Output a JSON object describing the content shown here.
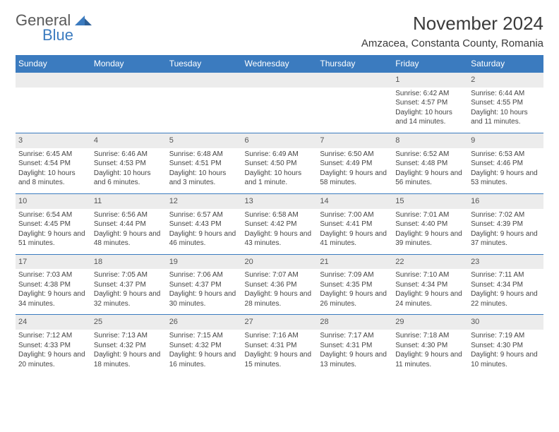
{
  "logo": {
    "general": "General",
    "blue": "Blue"
  },
  "title": "November 2024",
  "location": "Amzacea, Constanta County, Romania",
  "colors": {
    "header_bg": "#3b7bbf",
    "header_fg": "#ffffff",
    "daynum_bg": "#ececec",
    "rule": "#3b7bbf",
    "text": "#444444",
    "title": "#3a3a3a",
    "logo_gray": "#5a5a5a",
    "logo_blue": "#3b7bbf"
  },
  "typography": {
    "title_fontsize": 26,
    "location_fontsize": 15,
    "dayhead_fontsize": 12,
    "daynum_fontsize": 11,
    "detail_fontsize": 10
  },
  "day_headers": [
    "Sunday",
    "Monday",
    "Tuesday",
    "Wednesday",
    "Thursday",
    "Friday",
    "Saturday"
  ],
  "weeks": [
    [
      null,
      null,
      null,
      null,
      null,
      {
        "n": "1",
        "sr": "Sunrise: 6:42 AM",
        "ss": "Sunset: 4:57 PM",
        "dl": "Daylight: 10 hours and 14 minutes."
      },
      {
        "n": "2",
        "sr": "Sunrise: 6:44 AM",
        "ss": "Sunset: 4:55 PM",
        "dl": "Daylight: 10 hours and 11 minutes."
      }
    ],
    [
      {
        "n": "3",
        "sr": "Sunrise: 6:45 AM",
        "ss": "Sunset: 4:54 PM",
        "dl": "Daylight: 10 hours and 8 minutes."
      },
      {
        "n": "4",
        "sr": "Sunrise: 6:46 AM",
        "ss": "Sunset: 4:53 PM",
        "dl": "Daylight: 10 hours and 6 minutes."
      },
      {
        "n": "5",
        "sr": "Sunrise: 6:48 AM",
        "ss": "Sunset: 4:51 PM",
        "dl": "Daylight: 10 hours and 3 minutes."
      },
      {
        "n": "6",
        "sr": "Sunrise: 6:49 AM",
        "ss": "Sunset: 4:50 PM",
        "dl": "Daylight: 10 hours and 1 minute."
      },
      {
        "n": "7",
        "sr": "Sunrise: 6:50 AM",
        "ss": "Sunset: 4:49 PM",
        "dl": "Daylight: 9 hours and 58 minutes."
      },
      {
        "n": "8",
        "sr": "Sunrise: 6:52 AM",
        "ss": "Sunset: 4:48 PM",
        "dl": "Daylight: 9 hours and 56 minutes."
      },
      {
        "n": "9",
        "sr": "Sunrise: 6:53 AM",
        "ss": "Sunset: 4:46 PM",
        "dl": "Daylight: 9 hours and 53 minutes."
      }
    ],
    [
      {
        "n": "10",
        "sr": "Sunrise: 6:54 AM",
        "ss": "Sunset: 4:45 PM",
        "dl": "Daylight: 9 hours and 51 minutes."
      },
      {
        "n": "11",
        "sr": "Sunrise: 6:56 AM",
        "ss": "Sunset: 4:44 PM",
        "dl": "Daylight: 9 hours and 48 minutes."
      },
      {
        "n": "12",
        "sr": "Sunrise: 6:57 AM",
        "ss": "Sunset: 4:43 PM",
        "dl": "Daylight: 9 hours and 46 minutes."
      },
      {
        "n": "13",
        "sr": "Sunrise: 6:58 AM",
        "ss": "Sunset: 4:42 PM",
        "dl": "Daylight: 9 hours and 43 minutes."
      },
      {
        "n": "14",
        "sr": "Sunrise: 7:00 AM",
        "ss": "Sunset: 4:41 PM",
        "dl": "Daylight: 9 hours and 41 minutes."
      },
      {
        "n": "15",
        "sr": "Sunrise: 7:01 AM",
        "ss": "Sunset: 4:40 PM",
        "dl": "Daylight: 9 hours and 39 minutes."
      },
      {
        "n": "16",
        "sr": "Sunrise: 7:02 AM",
        "ss": "Sunset: 4:39 PM",
        "dl": "Daylight: 9 hours and 37 minutes."
      }
    ],
    [
      {
        "n": "17",
        "sr": "Sunrise: 7:03 AM",
        "ss": "Sunset: 4:38 PM",
        "dl": "Daylight: 9 hours and 34 minutes."
      },
      {
        "n": "18",
        "sr": "Sunrise: 7:05 AM",
        "ss": "Sunset: 4:37 PM",
        "dl": "Daylight: 9 hours and 32 minutes."
      },
      {
        "n": "19",
        "sr": "Sunrise: 7:06 AM",
        "ss": "Sunset: 4:37 PM",
        "dl": "Daylight: 9 hours and 30 minutes."
      },
      {
        "n": "20",
        "sr": "Sunrise: 7:07 AM",
        "ss": "Sunset: 4:36 PM",
        "dl": "Daylight: 9 hours and 28 minutes."
      },
      {
        "n": "21",
        "sr": "Sunrise: 7:09 AM",
        "ss": "Sunset: 4:35 PM",
        "dl": "Daylight: 9 hours and 26 minutes."
      },
      {
        "n": "22",
        "sr": "Sunrise: 7:10 AM",
        "ss": "Sunset: 4:34 PM",
        "dl": "Daylight: 9 hours and 24 minutes."
      },
      {
        "n": "23",
        "sr": "Sunrise: 7:11 AM",
        "ss": "Sunset: 4:34 PM",
        "dl": "Daylight: 9 hours and 22 minutes."
      }
    ],
    [
      {
        "n": "24",
        "sr": "Sunrise: 7:12 AM",
        "ss": "Sunset: 4:33 PM",
        "dl": "Daylight: 9 hours and 20 minutes."
      },
      {
        "n": "25",
        "sr": "Sunrise: 7:13 AM",
        "ss": "Sunset: 4:32 PM",
        "dl": "Daylight: 9 hours and 18 minutes."
      },
      {
        "n": "26",
        "sr": "Sunrise: 7:15 AM",
        "ss": "Sunset: 4:32 PM",
        "dl": "Daylight: 9 hours and 16 minutes."
      },
      {
        "n": "27",
        "sr": "Sunrise: 7:16 AM",
        "ss": "Sunset: 4:31 PM",
        "dl": "Daylight: 9 hours and 15 minutes."
      },
      {
        "n": "28",
        "sr": "Sunrise: 7:17 AM",
        "ss": "Sunset: 4:31 PM",
        "dl": "Daylight: 9 hours and 13 minutes."
      },
      {
        "n": "29",
        "sr": "Sunrise: 7:18 AM",
        "ss": "Sunset: 4:30 PM",
        "dl": "Daylight: 9 hours and 11 minutes."
      },
      {
        "n": "30",
        "sr": "Sunrise: 7:19 AM",
        "ss": "Sunset: 4:30 PM",
        "dl": "Daylight: 9 hours and 10 minutes."
      }
    ]
  ]
}
